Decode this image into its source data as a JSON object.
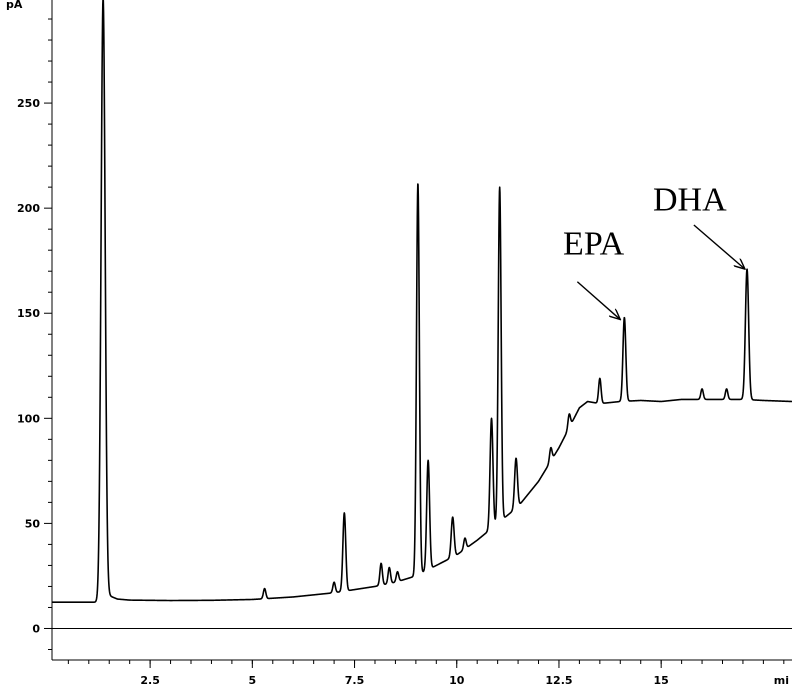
{
  "chart_data": {
    "type": "line",
    "title": "",
    "xlabel": "",
    "ylabel": "",
    "y_unit": "pA",
    "x_unit": "mi",
    "xlim": [
      0.1,
      18.2
    ],
    "ylim": [
      -15,
      300
    ],
    "x_major_ticks": [
      2.5,
      5,
      7.5,
      10,
      12.5,
      15
    ],
    "x_tick_labels": [
      "2.5",
      "5",
      "7.5",
      "10",
      "12.5",
      "15"
    ],
    "y_major_ticks": [
      0,
      50,
      100,
      150,
      200,
      250
    ],
    "y_tick_labels": [
      "0",
      "50",
      "100",
      "150",
      "200",
      "250"
    ],
    "zero_line": true,
    "grid": false,
    "legend": "none",
    "series": [
      {
        "color": "#000000",
        "baseline": [
          [
            0.1,
            12.5
          ],
          [
            1.2,
            12.5
          ],
          [
            1.3,
            12.5
          ],
          [
            1.45,
            16
          ],
          [
            1.7,
            14
          ],
          [
            2,
            13.5
          ],
          [
            3,
            13.3
          ],
          [
            4,
            13.4
          ],
          [
            5,
            13.8
          ],
          [
            6,
            15
          ],
          [
            7,
            17
          ],
          [
            7.5,
            18.5
          ],
          [
            8,
            20
          ],
          [
            8.5,
            22
          ],
          [
            9,
            25
          ],
          [
            9.5,
            30
          ],
          [
            10,
            35
          ],
          [
            10.5,
            42
          ],
          [
            11,
            50
          ],
          [
            11.5,
            58
          ],
          [
            12,
            70
          ],
          [
            12.5,
            86
          ],
          [
            13,
            105
          ],
          [
            13.2,
            108
          ],
          [
            13.5,
            107
          ],
          [
            14,
            108
          ],
          [
            14.5,
            108.5
          ],
          [
            15,
            108
          ],
          [
            15.5,
            109
          ],
          [
            16,
            109
          ],
          [
            16.5,
            109
          ],
          [
            17,
            109
          ],
          [
            17.5,
            108.5
          ],
          [
            18.2,
            108
          ]
        ],
        "peaks": [
          {
            "rt": 1.35,
            "height": 300,
            "width": 0.05
          },
          {
            "rt": 5.3,
            "height": 19,
            "width": 0.03
          },
          {
            "rt": 7.0,
            "height": 22,
            "width": 0.03
          },
          {
            "rt": 7.25,
            "height": 55,
            "width": 0.035
          },
          {
            "rt": 8.15,
            "height": 31,
            "width": 0.03
          },
          {
            "rt": 8.35,
            "height": 29,
            "width": 0.03
          },
          {
            "rt": 8.55,
            "height": 27,
            "width": 0.03
          },
          {
            "rt": 9.05,
            "height": 212,
            "width": 0.035
          },
          {
            "rt": 9.3,
            "height": 80,
            "width": 0.035
          },
          {
            "rt": 9.9,
            "height": 53,
            "width": 0.035
          },
          {
            "rt": 10.2,
            "height": 43,
            "width": 0.03
          },
          {
            "rt": 10.85,
            "height": 100,
            "width": 0.035
          },
          {
            "rt": 11.05,
            "height": 210,
            "width": 0.035
          },
          {
            "rt": 11.45,
            "height": 81,
            "width": 0.035
          },
          {
            "rt": 12.3,
            "height": 86,
            "width": 0.03
          },
          {
            "rt": 12.75,
            "height": 102,
            "width": 0.03
          },
          {
            "rt": 13.5,
            "height": 119,
            "width": 0.03
          },
          {
            "rt": 14.1,
            "height": 148,
            "width": 0.035
          },
          {
            "rt": 16.0,
            "height": 114,
            "width": 0.03
          },
          {
            "rt": 16.6,
            "height": 114,
            "width": 0.03
          },
          {
            "rt": 17.1,
            "height": 171,
            "width": 0.04
          }
        ]
      }
    ],
    "annotations": [
      {
        "text": "EPA",
        "text_at": [
          12.6,
          178
        ],
        "arrow_from": [
          12.95,
          165
        ],
        "arrow_to": [
          14.0,
          147
        ]
      },
      {
        "text": "DHA",
        "text_at": [
          14.8,
          199
        ],
        "arrow_from": [
          15.8,
          192
        ],
        "arrow_to": [
          17.05,
          171
        ]
      }
    ]
  }
}
